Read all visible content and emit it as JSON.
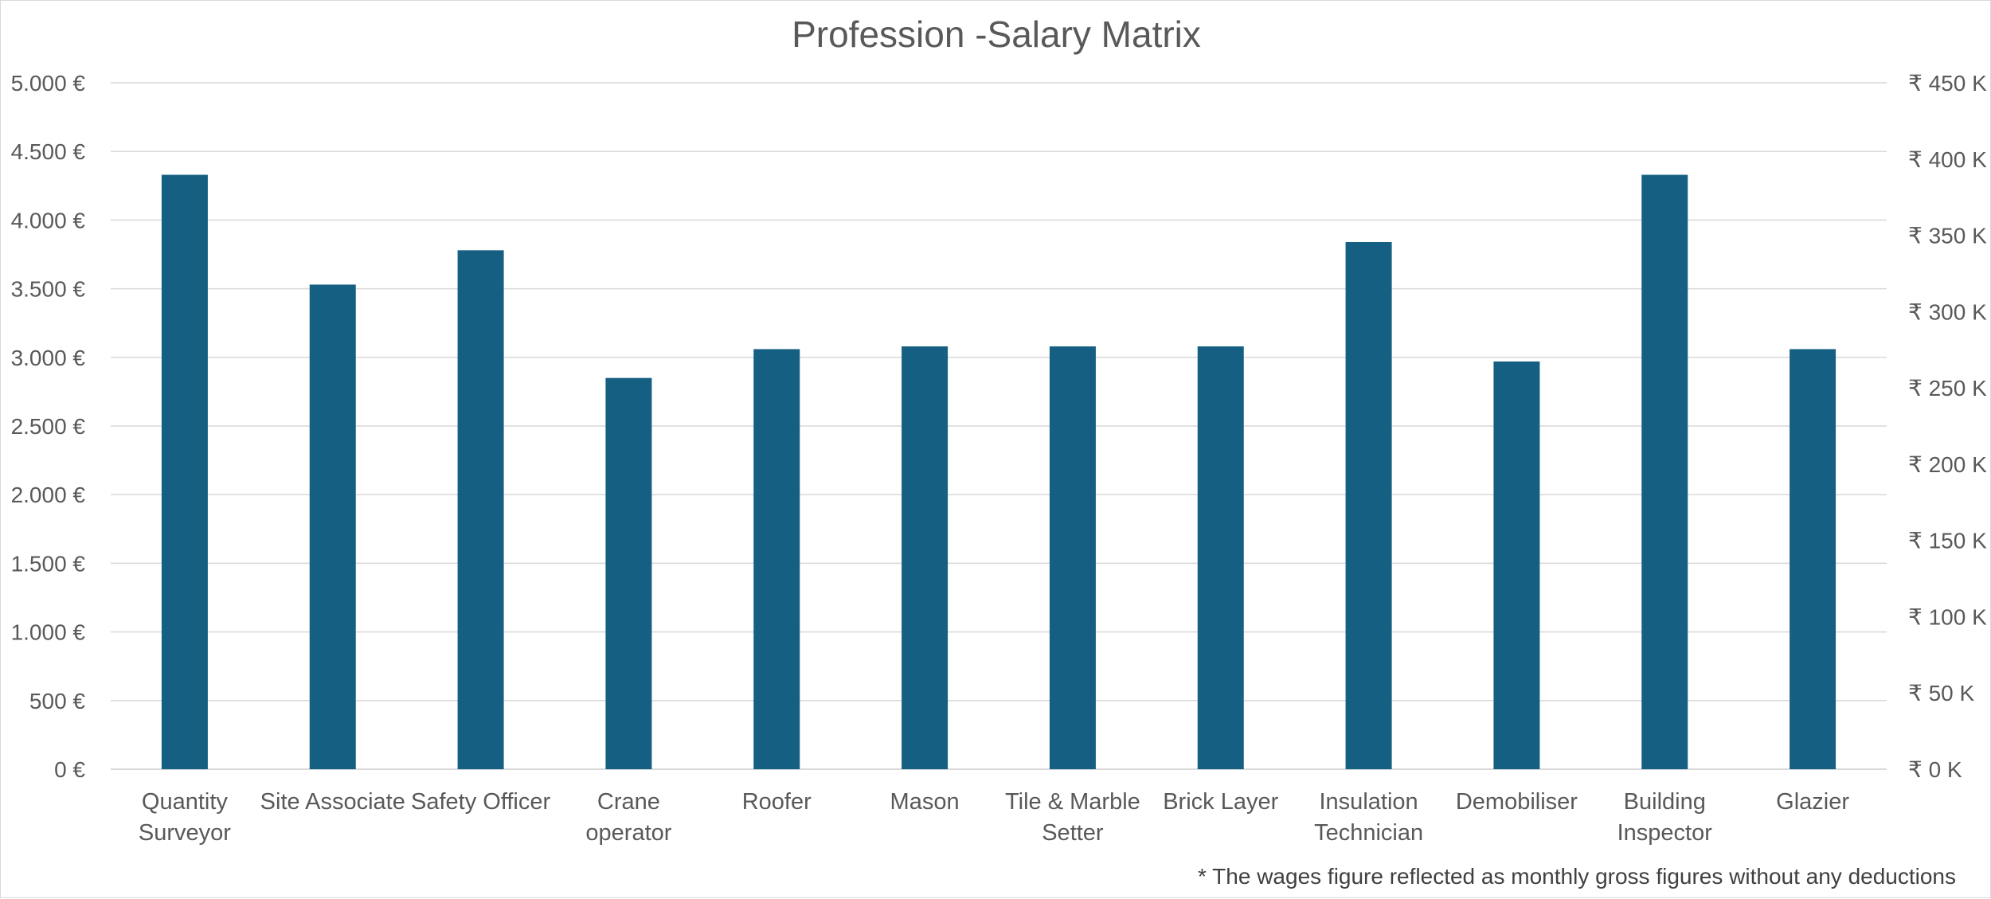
{
  "chart_data": {
    "type": "bar",
    "title": "Profession -Salary Matrix",
    "categories": [
      "Quantity Surveyor",
      "Site Associate",
      "Safety Officer",
      "Crane operator",
      "Roofer",
      "Mason",
      "Tile & Marble Setter",
      "Brick Layer",
      "Insulation Technician",
      "Demobiliser",
      "Building Inspector",
      "Glazier"
    ],
    "category_lines": [
      [
        "Quantity",
        "Surveyor"
      ],
      [
        "Site Associate"
      ],
      [
        "Safety Officer"
      ],
      [
        "Crane",
        "operator"
      ],
      [
        "Roofer"
      ],
      [
        "Mason"
      ],
      [
        "Tile & Marble",
        "Setter"
      ],
      [
        "Brick Layer"
      ],
      [
        "Insulation",
        "Technician"
      ],
      [
        "Demobiliser"
      ],
      [
        "Building",
        "Inspector"
      ],
      [
        "Glazier"
      ]
    ],
    "series": [
      {
        "values": [
          4330,
          3530,
          3780,
          2850,
          3060,
          3080,
          3080,
          3080,
          3840,
          2970,
          4330,
          3060
        ]
      }
    ],
    "ylim": [
      0,
      5000
    ],
    "y_ticks": [
      0,
      500,
      1000,
      1500,
      2000,
      2500,
      3000,
      3500,
      4000,
      4500,
      5000
    ],
    "y_tick_labels": [
      "0 €",
      "500 €",
      "1.000 €",
      "1.500 €",
      "2.000 €",
      "2.500 €",
      "3.000 €",
      "3.500 €",
      "4.000 €",
      "4.500 €",
      "5.000 €"
    ],
    "y2lim": [
      0,
      450
    ],
    "y2_ticks": [
      0,
      50,
      100,
      150,
      200,
      250,
      300,
      350,
      400,
      450
    ],
    "y2_tick_labels": [
      "₹ 0 K",
      "₹ 50 K",
      "₹ 100 K",
      "₹ 150 K",
      "₹ 200 K",
      "₹ 250 K",
      "₹ 300 K",
      "₹ 350 K",
      "₹ 400 K",
      "₹ 450 K"
    ],
    "grid": true,
    "legend": "none",
    "bar_color": "#156082",
    "annotation": "* The wages figure reflected as monthly gross figures without any deductions"
  }
}
